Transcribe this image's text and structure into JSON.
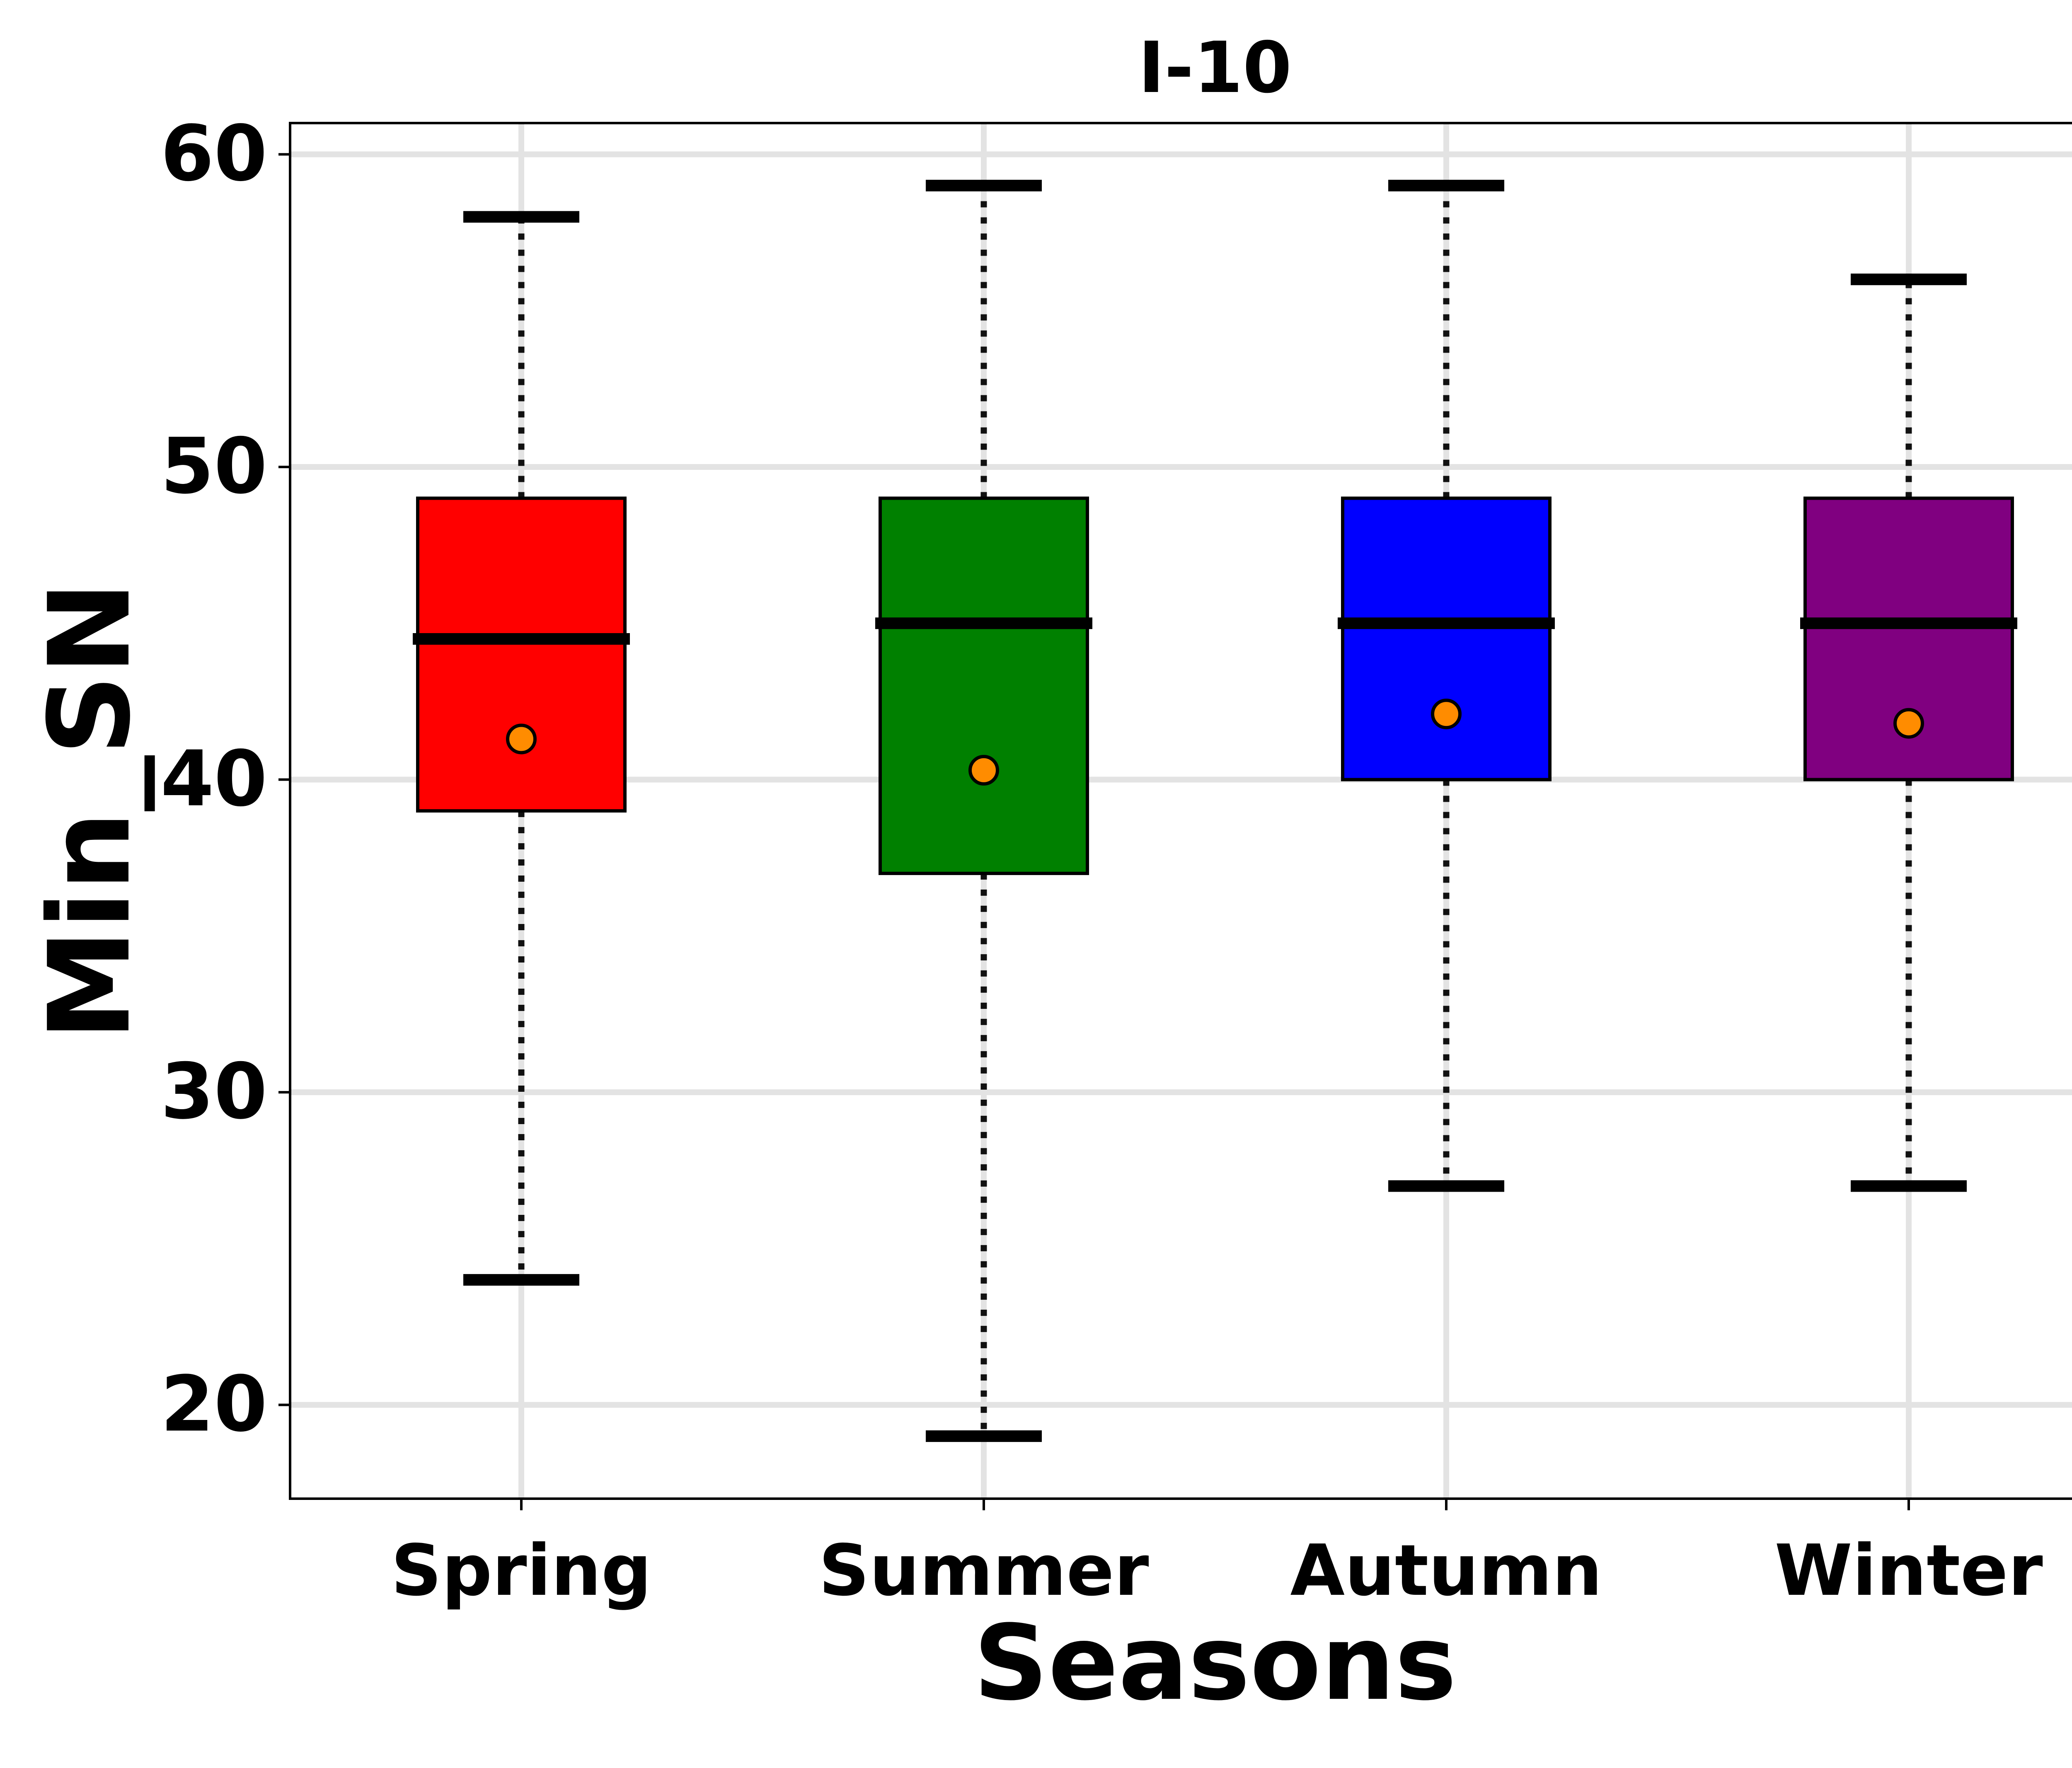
{
  "chart_data": {
    "type": "box",
    "title": "I-10",
    "xlabel": "Seasons",
    "ylabel": "Min_SN",
    "ylim": [
      17,
      61
    ],
    "yticks": [
      20,
      30,
      40,
      50,
      60
    ],
    "grid": true,
    "categories": [
      "Spring",
      "Summer",
      "Autumn",
      "Winter"
    ],
    "boxes": [
      {
        "category": "Spring",
        "color": "#ff0000",
        "whisker_low": 24,
        "q1": 39,
        "median": 44.5,
        "q3": 49,
        "whisker_high": 58,
        "mean": 41.3
      },
      {
        "category": "Summer",
        "color": "#008000",
        "whisker_low": 19,
        "q1": 37,
        "median": 45,
        "q3": 49,
        "whisker_high": 59,
        "mean": 40.3
      },
      {
        "category": "Autumn",
        "color": "#0000ff",
        "whisker_low": 27,
        "q1": 40,
        "median": 45,
        "q3": 49,
        "whisker_high": 59,
        "mean": 42.1
      },
      {
        "category": "Winter",
        "color": "#800080",
        "whisker_low": 27,
        "q1": 40,
        "median": 45,
        "q3": 49,
        "whisker_high": 56,
        "mean": 41.8
      }
    ],
    "mean_marker_color": "#ff8c00"
  }
}
